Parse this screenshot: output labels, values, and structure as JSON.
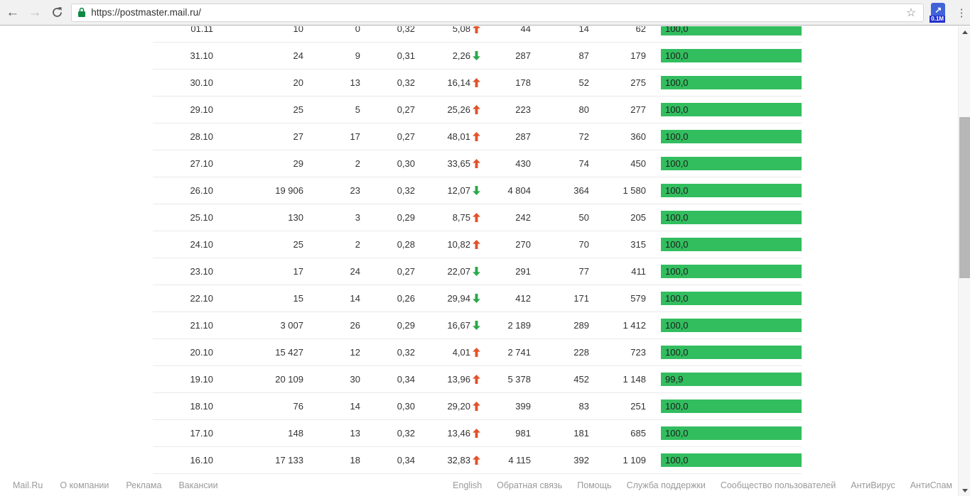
{
  "browser": {
    "url": "https://postmaster.mail.ru/",
    "extension_badge": "0.1M",
    "extension_glyph": "↗",
    "back_glyph": "←",
    "forward_glyph": "→",
    "menu_glyph": "⋮",
    "star_glyph": "☆"
  },
  "colors": {
    "bar_green": "#32bd5f",
    "trend_up_red": "#e2522a",
    "trend_down_green": "#2ba84a",
    "secure_lock_green": "#0e8a43",
    "extension_blue": "#4063d8",
    "badge_blue": "#2330cb"
  },
  "chart_data": {
    "type": "table",
    "note": "postmaster.mail.ru daily mail statistics; column headers scrolled out of view",
    "columns": [
      "date",
      "col1",
      "col2",
      "col3",
      "percent_change",
      "trend",
      "col5",
      "col6",
      "col7",
      "delivery_rate"
    ],
    "rows": [
      {
        "date": "01.11",
        "c1": "10",
        "c2": "0",
        "c3": "0,32",
        "pct": "5,08",
        "trend": "up",
        "c5": "44",
        "c6": "14",
        "c7": "62",
        "bar_label": "100,0",
        "bar_value": 100
      },
      {
        "date": "31.10",
        "c1": "24",
        "c2": "9",
        "c3": "0,31",
        "pct": "2,26",
        "trend": "down",
        "c5": "287",
        "c6": "87",
        "c7": "179",
        "bar_label": "100,0",
        "bar_value": 100
      },
      {
        "date": "30.10",
        "c1": "20",
        "c2": "13",
        "c3": "0,32",
        "pct": "16,14",
        "trend": "up",
        "c5": "178",
        "c6": "52",
        "c7": "275",
        "bar_label": "100,0",
        "bar_value": 100
      },
      {
        "date": "29.10",
        "c1": "25",
        "c2": "5",
        "c3": "0,27",
        "pct": "25,26",
        "trend": "up",
        "c5": "223",
        "c6": "80",
        "c7": "277",
        "bar_label": "100,0",
        "bar_value": 100
      },
      {
        "date": "28.10",
        "c1": "27",
        "c2": "17",
        "c3": "0,27",
        "pct": "48,01",
        "trend": "up",
        "c5": "287",
        "c6": "72",
        "c7": "360",
        "bar_label": "100,0",
        "bar_value": 100
      },
      {
        "date": "27.10",
        "c1": "29",
        "c2": "2",
        "c3": "0,30",
        "pct": "33,65",
        "trend": "up",
        "c5": "430",
        "c6": "74",
        "c7": "450",
        "bar_label": "100,0",
        "bar_value": 100
      },
      {
        "date": "26.10",
        "c1": "19 906",
        "c2": "23",
        "c3": "0,32",
        "pct": "12,07",
        "trend": "down",
        "c5": "4 804",
        "c6": "364",
        "c7": "1 580",
        "bar_label": "100,0",
        "bar_value": 100
      },
      {
        "date": "25.10",
        "c1": "130",
        "c2": "3",
        "c3": "0,29",
        "pct": "8,75",
        "trend": "up",
        "c5": "242",
        "c6": "50",
        "c7": "205",
        "bar_label": "100,0",
        "bar_value": 100
      },
      {
        "date": "24.10",
        "c1": "25",
        "c2": "2",
        "c3": "0,28",
        "pct": "10,82",
        "trend": "up",
        "c5": "270",
        "c6": "70",
        "c7": "315",
        "bar_label": "100,0",
        "bar_value": 100
      },
      {
        "date": "23.10",
        "c1": "17",
        "c2": "24",
        "c3": "0,27",
        "pct": "22,07",
        "trend": "down",
        "c5": "291",
        "c6": "77",
        "c7": "411",
        "bar_label": "100,0",
        "bar_value": 100
      },
      {
        "date": "22.10",
        "c1": "15",
        "c2": "14",
        "c3": "0,26",
        "pct": "29,94",
        "trend": "down",
        "c5": "412",
        "c6": "171",
        "c7": "579",
        "bar_label": "100,0",
        "bar_value": 100
      },
      {
        "date": "21.10",
        "c1": "3 007",
        "c2": "26",
        "c3": "0,29",
        "pct": "16,67",
        "trend": "down",
        "c5": "2 189",
        "c6": "289",
        "c7": "1 412",
        "bar_label": "100,0",
        "bar_value": 100
      },
      {
        "date": "20.10",
        "c1": "15 427",
        "c2": "12",
        "c3": "0,32",
        "pct": "4,01",
        "trend": "up",
        "c5": "2 741",
        "c6": "228",
        "c7": "723",
        "bar_label": "100,0",
        "bar_value": 100
      },
      {
        "date": "19.10",
        "c1": "20 109",
        "c2": "30",
        "c3": "0,34",
        "pct": "13,96",
        "trend": "up",
        "c5": "5 378",
        "c6": "452",
        "c7": "1 148",
        "bar_label": "99,9",
        "bar_value": 99.9
      },
      {
        "date": "18.10",
        "c1": "76",
        "c2": "14",
        "c3": "0,30",
        "pct": "29,20",
        "trend": "up",
        "c5": "399",
        "c6": "83",
        "c7": "251",
        "bar_label": "100,0",
        "bar_value": 100
      },
      {
        "date": "17.10",
        "c1": "148",
        "c2": "13",
        "c3": "0,32",
        "pct": "13,46",
        "trend": "up",
        "c5": "981",
        "c6": "181",
        "c7": "685",
        "bar_label": "100,0",
        "bar_value": 100
      },
      {
        "date": "16.10",
        "c1": "17 133",
        "c2": "18",
        "c3": "0,34",
        "pct": "32,83",
        "trend": "up",
        "c5": "4 115",
        "c6": "392",
        "c7": "1 109",
        "bar_label": "100,0",
        "bar_value": 100
      }
    ]
  },
  "footer": {
    "left_links": [
      "Mail.Ru",
      "О компании",
      "Реклама",
      "Вакансии"
    ],
    "right_links": [
      "English",
      "Обратная связь",
      "Помощь",
      "Служба поддержки",
      "Сообщество пользователей",
      "АнтиВирус",
      "АнтиСпам"
    ]
  }
}
